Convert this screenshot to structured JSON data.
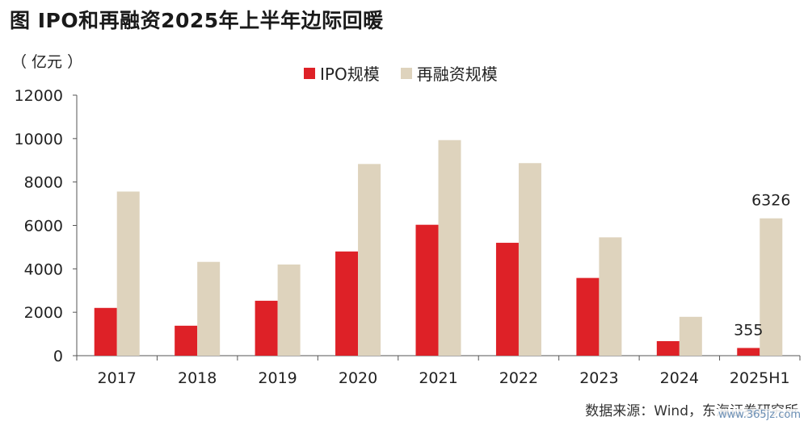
{
  "title": "图  IPO和再融资2025年上半年边际回暖",
  "unit": "（ 亿元 ）",
  "source": "数据来源：Wind，东海证券研究所",
  "watermark": "www.365jz.com",
  "colors": {
    "ipo": "#de2127",
    "refinance": "#ded3bd",
    "axis": "#555555"
  },
  "chart_data": {
    "type": "bar",
    "categories": [
      "2017",
      "2018",
      "2019",
      "2020",
      "2021",
      "2022",
      "2023",
      "2024",
      "2025H1"
    ],
    "series": [
      {
        "name": "IPO规模",
        "values": [
          2200,
          1380,
          2530,
          4800,
          6030,
          5200,
          3580,
          670,
          355
        ]
      },
      {
        "name": "再融资规模",
        "values": [
          7560,
          4320,
          4200,
          8830,
          9930,
          8870,
          5450,
          1790,
          6326
        ]
      }
    ],
    "data_labels": [
      {
        "series": 0,
        "index": 8,
        "text": "355"
      },
      {
        "series": 1,
        "index": 8,
        "text": "6326"
      }
    ],
    "ylim": [
      0,
      12000
    ],
    "yticks": [
      0,
      2000,
      4000,
      6000,
      8000,
      10000,
      12000
    ],
    "ytick_labels": [
      "0",
      "2000",
      "4000",
      "6000",
      "8000",
      "10000",
      "12000"
    ],
    "xlabel": "",
    "ylabel": "",
    "grid": false,
    "legend_position": "top-center"
  }
}
